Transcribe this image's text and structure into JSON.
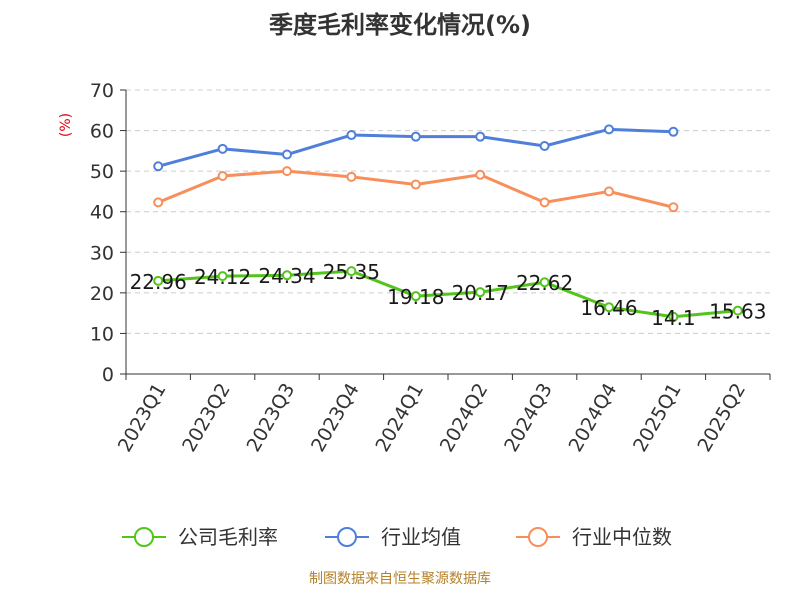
{
  "title": "季度毛利率变化情况(%)",
  "unit": "(%)",
  "source": "制图数据来自恒生聚源数据库",
  "chart_data": {
    "type": "line",
    "title": "季度毛利率变化情况(%)",
    "categories": [
      "2023Q1",
      "2023Q2",
      "2023Q3",
      "2023Q4",
      "2024Q1",
      "2024Q2",
      "2024Q3",
      "2024Q4",
      "2025Q1",
      "2025Q2"
    ],
    "ylim": [
      0,
      70
    ],
    "yticks": [
      0,
      10,
      20,
      30,
      40,
      50,
      60,
      70
    ],
    "grid": true,
    "legend_position": "bottom",
    "series": [
      {
        "name": "公司毛利率",
        "color": "#52c41a",
        "values": [
          22.96,
          24.12,
          24.34,
          25.35,
          19.18,
          20.17,
          22.62,
          16.46,
          14.1,
          15.63
        ],
        "labels": [
          "22.96",
          "24.12",
          "24.34",
          "25.35",
          "19.18",
          "20.17",
          "22.62",
          "16.46",
          "14.1",
          "15.63"
        ]
      },
      {
        "name": "行业均值",
        "color": "#4f7fdb",
        "values": [
          51.2,
          55.5,
          54.1,
          58.9,
          58.5,
          58.5,
          56.2,
          60.3,
          59.7,
          null
        ]
      },
      {
        "name": "行业中位数",
        "color": "#f88e5a",
        "values": [
          42.3,
          48.8,
          50.0,
          48.6,
          46.7,
          49.1,
          42.3,
          45.0,
          41.1,
          null
        ]
      }
    ]
  }
}
